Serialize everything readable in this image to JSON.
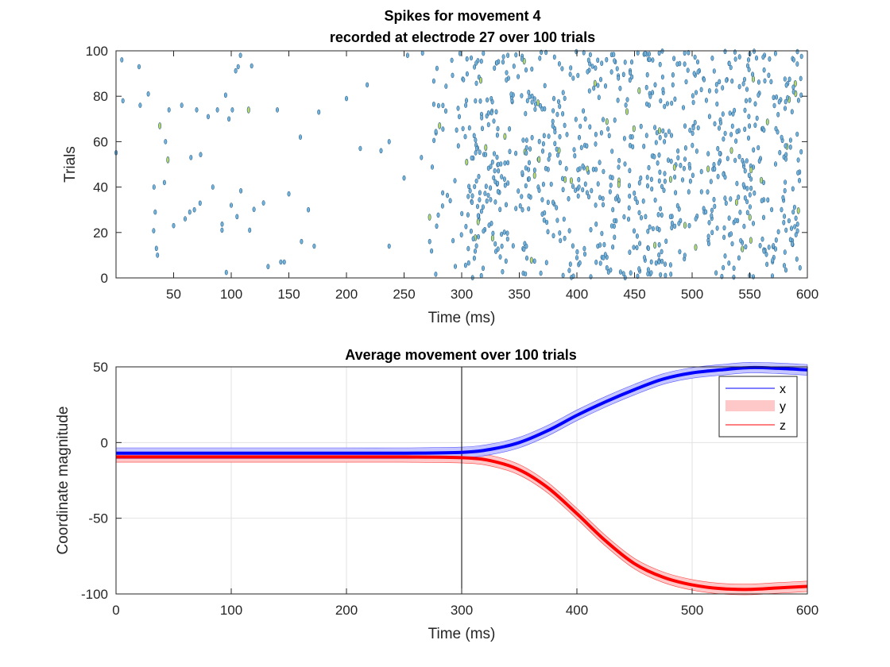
{
  "colors": {
    "x_line": "#0000ff",
    "x_band": "#bfbfff",
    "y_band": "#ffc8c8",
    "z_line": "#ff0000",
    "spike_fill": "#74b3d9",
    "spike_fill_hot": "#b9d86a",
    "spike_edge": "#2a5f8c",
    "grid": "#e2e2e2",
    "axis": "#262626"
  },
  "chart_data": [
    {
      "type": "scatter",
      "title": "Spikes for movement 4",
      "subtitle": "recorded at electrode 27 over 100 trials",
      "xlabel": "Time (ms)",
      "ylabel": "Trials",
      "xlim": [
        0,
        600
      ],
      "ylim": [
        0,
        100
      ],
      "xticks": [
        50,
        100,
        150,
        200,
        250,
        300,
        350,
        400,
        450,
        500,
        550,
        600
      ],
      "yticks": [
        0,
        20,
        40,
        60,
        80,
        100
      ],
      "grid": false,
      "spikes": {
        "sparse_segment": {
          "t_start": 0,
          "t_end": 270,
          "count": 65
        },
        "dense_segment": {
          "t_start": 270,
          "t_end": 595,
          "count": 900
        },
        "trials": 100,
        "description_values": [
          [
            5,
            96
          ],
          [
            6,
            78
          ],
          [
            20,
            93
          ],
          [
            21,
            76
          ],
          [
            28,
            81
          ],
          [
            33,
            40
          ],
          [
            34,
            29
          ],
          [
            35,
            13
          ],
          [
            36,
            10
          ],
          [
            38,
            67
          ],
          [
            42,
            42
          ],
          [
            43,
            60
          ],
          [
            45,
            52
          ],
          [
            46,
            74
          ],
          [
            50,
            23
          ],
          [
            57,
            76
          ],
          [
            60,
            26
          ],
          [
            64,
            29
          ],
          [
            65,
            53
          ],
          [
            68,
            30
          ],
          [
            70,
            74
          ],
          [
            80,
            71
          ],
          [
            84,
            40
          ],
          [
            88,
            74
          ],
          [
            92,
            21
          ],
          [
            98,
            70
          ],
          [
            100,
            32
          ],
          [
            101,
            74
          ],
          [
            105,
            27
          ],
          [
            106,
            93
          ],
          [
            108,
            98
          ],
          [
            115,
            74
          ],
          [
            116,
            21
          ],
          [
            128,
            33
          ],
          [
            132,
            5
          ],
          [
            140,
            74
          ],
          [
            143,
            7
          ],
          [
            146,
            7
          ],
          [
            150,
            37
          ],
          [
            160,
            62
          ],
          [
            161,
            16
          ],
          [
            167,
            30
          ],
          [
            172,
            14
          ],
          [
            176,
            73
          ],
          [
            200,
            79
          ],
          [
            212,
            57
          ],
          [
            218,
            85
          ],
          [
            230,
            56
          ],
          [
            237,
            60
          ],
          [
            237,
            14
          ],
          [
            250,
            44
          ],
          [
            253,
            98
          ],
          [
            265,
            53
          ],
          [
            266,
            99
          ]
        ]
      }
    },
    {
      "type": "line",
      "title": "Average movement over 100 trials",
      "xlabel": "Time (ms)",
      "ylabel": "Coordinate magnitude",
      "xlim": [
        0,
        600
      ],
      "ylim": [
        -100,
        50
      ],
      "xticks": [
        0,
        100,
        200,
        300,
        400,
        500,
        600
      ],
      "yticks": [
        -100,
        -50,
        0,
        50
      ],
      "grid": true,
      "vline_x": 300,
      "legend_placement": "top-right",
      "x": [
        0,
        50,
        100,
        150,
        200,
        250,
        300,
        325,
        350,
        375,
        400,
        425,
        450,
        475,
        500,
        525,
        550,
        575,
        600
      ],
      "series": [
        {
          "name": "x",
          "values": [
            -7,
            -7,
            -7,
            -7,
            -7,
            -7,
            -6.5,
            -4.5,
            0,
            8,
            18,
            27,
            35,
            42,
            46,
            48,
            49.5,
            49,
            48
          ],
          "band_halfwidth": 3.5
        },
        {
          "name": "y",
          "values": [
            -9.5,
            -9.5,
            -9.5,
            -9.5,
            -9.5,
            -9.5,
            -10,
            -12,
            -18,
            -30,
            -47,
            -65,
            -80,
            -89,
            -94,
            -96.5,
            -97,
            -96,
            -95
          ],
          "band_halfwidth": 3.5
        },
        {
          "name": "z",
          "values": [
            -9.5,
            -9.5,
            -9.5,
            -9.5,
            -9.5,
            -9.5,
            -10,
            -12,
            -18,
            -30,
            -47,
            -65,
            -80,
            -89,
            -94,
            -96.5,
            -97,
            -96,
            -95
          ]
        }
      ]
    }
  ]
}
